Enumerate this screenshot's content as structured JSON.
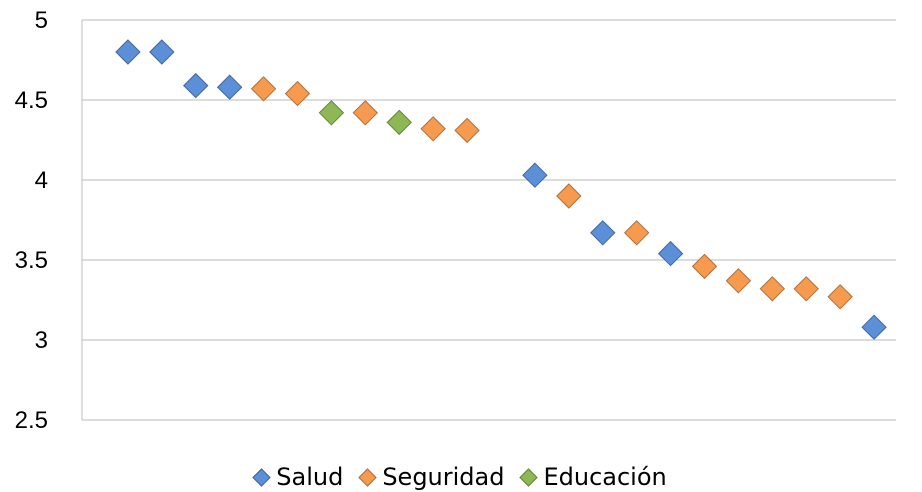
{
  "chart_data": {
    "type": "scatter",
    "marker": "diamond",
    "title": "",
    "xlabel": "",
    "ylabel": "",
    "ylim": [
      2.5,
      5
    ],
    "yticks": [
      "2.5",
      "3",
      "3.5",
      "4",
      "4.5",
      "5"
    ],
    "grid": "horizontal",
    "legend_position": "bottom",
    "series": [
      {
        "name": "Salud",
        "color": "#5B8FD8",
        "points": [
          [
            1,
            4.8
          ],
          [
            2,
            4.8
          ],
          [
            3,
            4.59
          ],
          [
            4,
            4.58
          ],
          [
            13,
            4.03
          ],
          [
            15,
            3.67
          ],
          [
            17,
            3.54
          ],
          [
            23,
            3.08
          ]
        ]
      },
      {
        "name": "Seguridad",
        "color": "#F59A4F",
        "points": [
          [
            5,
            4.57
          ],
          [
            6,
            4.54
          ],
          [
            8,
            4.42
          ],
          [
            10,
            4.32
          ],
          [
            11,
            4.31
          ],
          [
            14,
            3.9
          ],
          [
            16,
            3.67
          ],
          [
            18,
            3.46
          ],
          [
            19,
            3.37
          ],
          [
            20,
            3.32
          ],
          [
            21,
            3.32
          ],
          [
            22,
            3.27
          ]
        ]
      },
      {
        "name": "Educación",
        "color": "#8DB855",
        "points": [
          [
            7,
            4.42
          ],
          [
            9,
            4.36
          ]
        ]
      }
    ]
  }
}
